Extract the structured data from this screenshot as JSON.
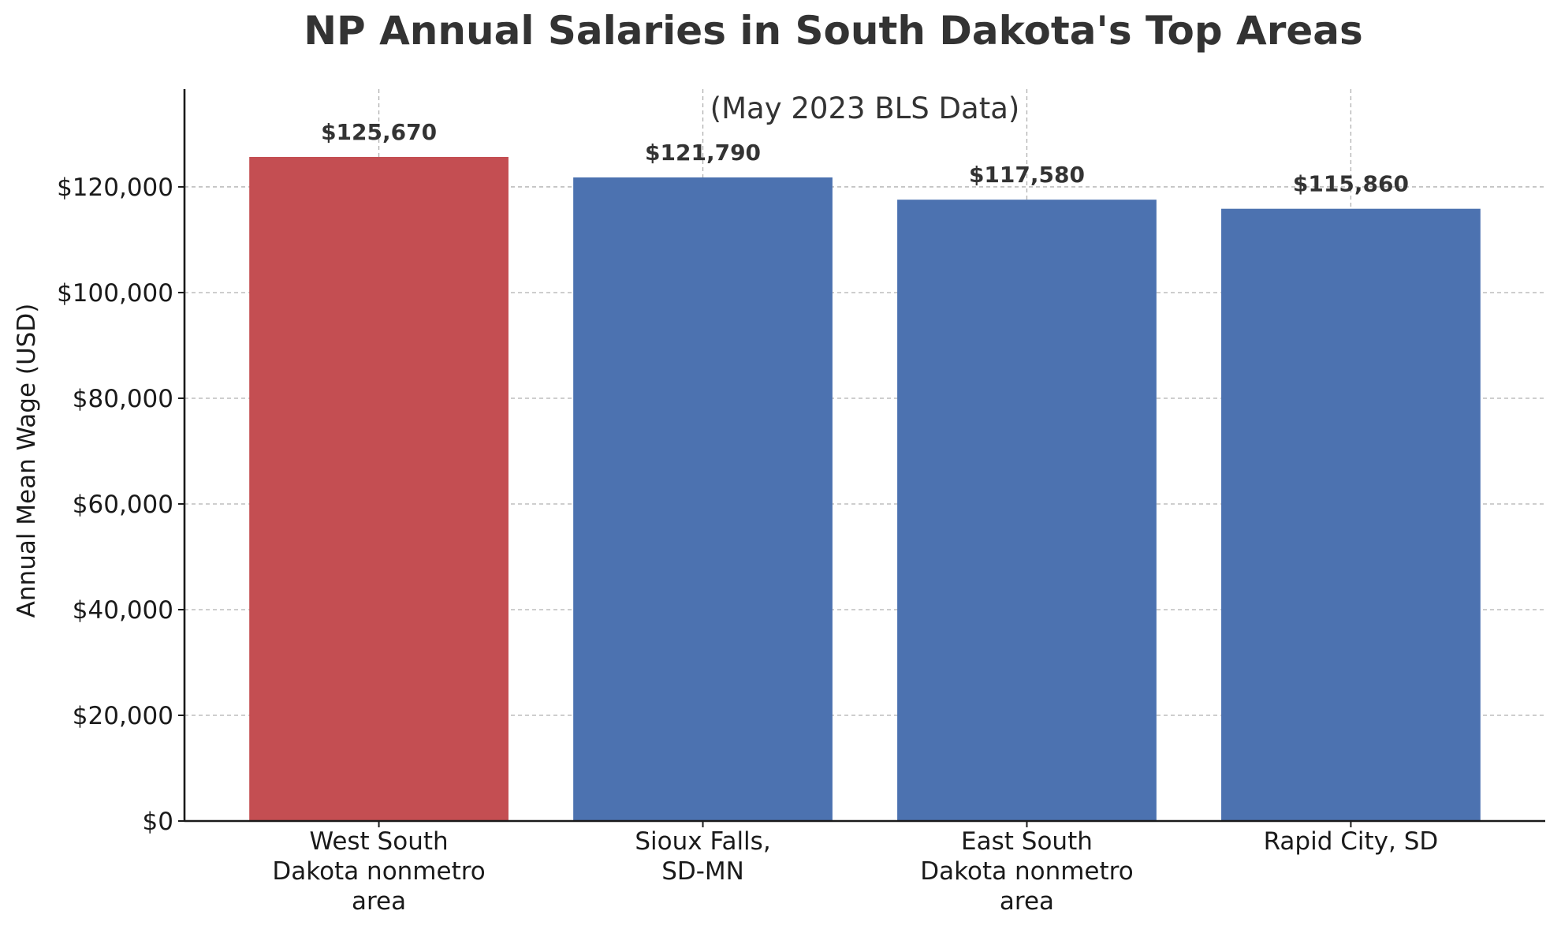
{
  "chart_data": {
    "type": "bar",
    "title": "NP Annual Salaries in South Dakota's Top Areas",
    "subtitle": "(May 2023 BLS Data)",
    "xlabel": "",
    "ylabel": "Annual Mean Wage (USD)",
    "categories": [
      [
        "West South",
        "Dakota nonmetro",
        "area"
      ],
      [
        "Sioux Falls,",
        "SD-MN"
      ],
      [
        "East South",
        "Dakota nonmetro",
        "area"
      ],
      [
        "Rapid City, SD"
      ]
    ],
    "values": [
      125670,
      121790,
      117580,
      115860
    ],
    "value_labels": [
      "$125,670",
      "$121,790",
      "$117,580",
      "$115,860"
    ],
    "bar_colors": [
      "#c44e52",
      "#4c72b0",
      "#4c72b0",
      "#4c72b0"
    ],
    "ylim": [
      0,
      138500
    ],
    "yticks": [
      0,
      20000,
      40000,
      60000,
      80000,
      100000,
      120000
    ],
    "ytick_labels": [
      "$0",
      "$20,000",
      "$40,000",
      "$60,000",
      "$80,000",
      "$100,000",
      "$120,000"
    ],
    "grid": true,
    "legend": "none"
  }
}
